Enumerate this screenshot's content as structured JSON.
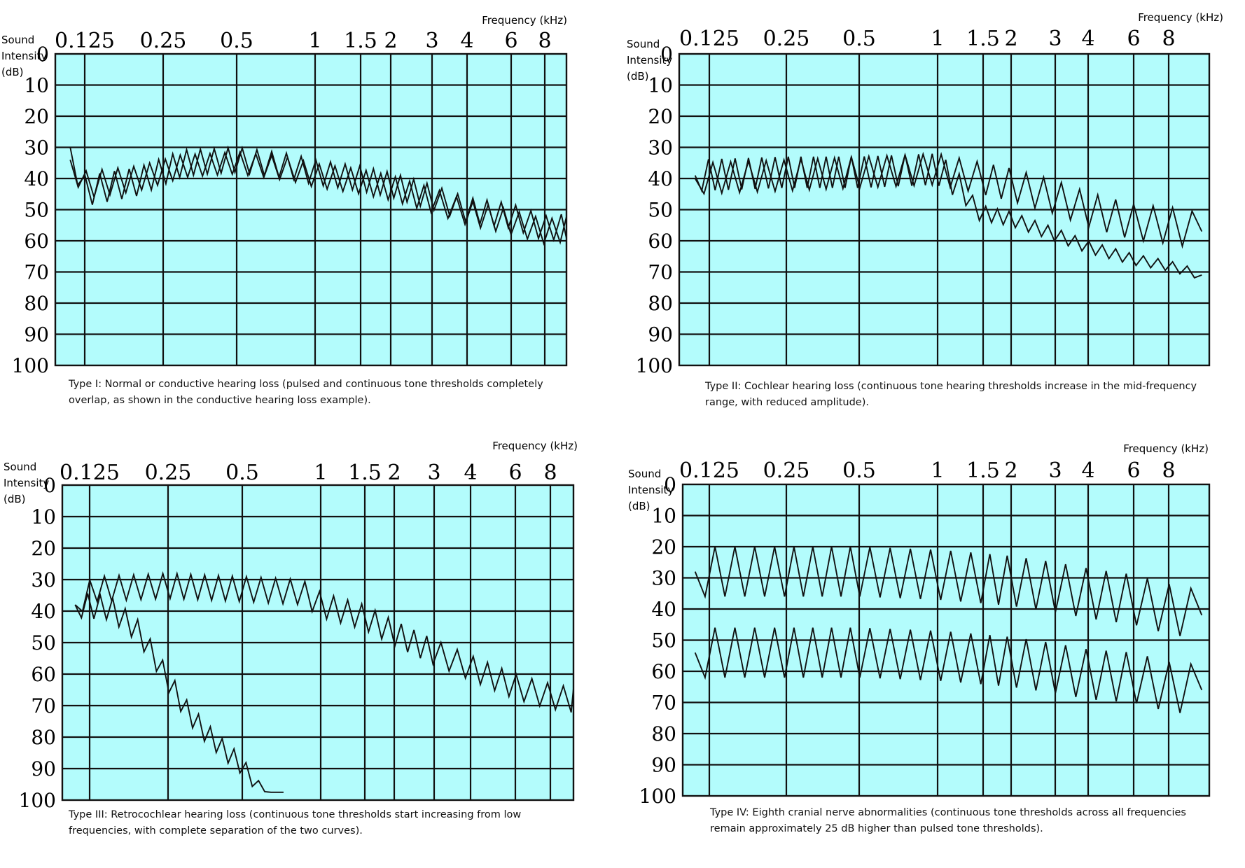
{
  "chart_data": [
    {
      "type": "line",
      "title": "",
      "xlabel": "Frequency (kHz)",
      "ylabel": [
        "Sound",
        "Intensity",
        "(dB)"
      ],
      "x_ticks": [
        "0.125",
        "0.25",
        "0.5",
        "1",
        "1.5",
        "2",
        "3",
        "4",
        "6",
        "8"
      ],
      "y_ticks": [
        "0",
        "10",
        "20",
        "30",
        "40",
        "50",
        "60",
        "70",
        "80",
        "90",
        "100"
      ],
      "ylim": [
        0,
        100
      ],
      "x_scale": "log",
      "grid": true,
      "plot_background": "#b3fcfc",
      "caption": "Type I: Normal or conductive hearing loss (pulsed and continuous tone thresholds completely overlap, as shown in the conductive hearing loss example).",
      "series": [
        {
          "role": "pulsed",
          "points": [
            [
              0.11,
              30
            ],
            [
              0.125,
              44
            ],
            [
              0.2,
              41
            ],
            [
              0.3,
              35
            ],
            [
              0.5,
              34
            ],
            [
              0.8,
              36
            ],
            [
              1.0,
              38
            ],
            [
              1.5,
              40
            ],
            [
              2.0,
              42
            ],
            [
              3.0,
              46
            ],
            [
              4.0,
              50
            ],
            [
              6.0,
              52
            ],
            [
              8.0,
              56
            ],
            [
              10.5,
              55
            ]
          ],
          "zigzag": [
            [
              0.11,
              10
            ],
            [
              0.4,
              8
            ],
            [
              1.5,
              8
            ],
            [
              10.5,
              8
            ]
          ],
          "step": 0.065
        },
        {
          "role": "continuous",
          "points": [
            [
              0.11,
              34
            ],
            [
              0.125,
              42
            ],
            [
              0.2,
              40
            ],
            [
              0.3,
              36
            ],
            [
              0.5,
              35
            ],
            [
              0.8,
              37
            ],
            [
              1.0,
              39
            ],
            [
              1.5,
              41
            ],
            [
              2.0,
              43
            ],
            [
              3.0,
              47
            ],
            [
              4.0,
              51
            ],
            [
              6.0,
              54
            ],
            [
              8.0,
              57
            ],
            [
              10.5,
              56
            ]
          ],
          "zigzag": [
            [
              0.11,
              9
            ],
            [
              0.4,
              7
            ],
            [
              1.5,
              8
            ],
            [
              10.5,
              8
            ]
          ],
          "step": 0.07
        }
      ]
    },
    {
      "type": "line",
      "title": "",
      "xlabel": "Frequency (kHz)",
      "ylabel": [
        "Sound",
        "Intensity",
        "(dB)"
      ],
      "x_ticks": [
        "0.125",
        "0.25",
        "0.5",
        "1",
        "1.5",
        "2",
        "3",
        "4",
        "6",
        "8"
      ],
      "y_ticks": [
        "0",
        "10",
        "20",
        "30",
        "40",
        "50",
        "60",
        "70",
        "80",
        "90",
        "100"
      ],
      "ylim": [
        0,
        100
      ],
      "x_scale": "log",
      "grid": true,
      "plot_background": "#b3fcfc",
      "caption": "Type II: Cochlear hearing loss (continuous tone hearing thresholds increase in the mid-frequency range, with reduced amplitude).",
      "series": [
        {
          "role": "pulsed",
          "points": [
            [
              0.11,
              40
            ],
            [
              0.25,
              39
            ],
            [
              0.5,
              38
            ],
            [
              1.0,
              37
            ],
            [
              1.5,
              40
            ],
            [
              2.0,
              42
            ],
            [
              3.0,
              46
            ],
            [
              4.0,
              50
            ],
            [
              6.0,
              54
            ],
            [
              8.0,
              55
            ],
            [
              10.5,
              57
            ]
          ],
          "zigzag": [
            [
              0.11,
              10
            ],
            [
              1.2,
              10
            ],
            [
              10.5,
              12
            ]
          ],
          "step": 0.08
        },
        {
          "role": "continuous",
          "points": [
            [
              0.11,
              39
            ],
            [
              0.25,
              38
            ],
            [
              0.5,
              38
            ],
            [
              1.0,
              37
            ],
            [
              1.2,
              42
            ],
            [
              1.45,
              51
            ],
            [
              2.0,
              53
            ],
            [
              3.0,
              58
            ],
            [
              4.0,
              62
            ],
            [
              6.0,
              66
            ],
            [
              8.0,
              68
            ],
            [
              10.5,
              71
            ]
          ],
          "zigzag": [
            [
              0.11,
              10
            ],
            [
              1.1,
              10
            ],
            [
              1.4,
              5
            ],
            [
              10.5,
              3
            ]
          ],
          "step": 0.06
        }
      ]
    },
    {
      "type": "line",
      "title": "",
      "xlabel": "Frequency (kHz)",
      "ylabel": [
        "Sound",
        "Intensity",
        "(dB)"
      ],
      "x_ticks": [
        "0.125",
        "0.25",
        "0.5",
        "1",
        "1.5",
        "2",
        "3",
        "4",
        "6",
        "8"
      ],
      "y_ticks": [
        "0",
        "10",
        "20",
        "30",
        "40",
        "50",
        "60",
        "70",
        "80",
        "90",
        "100"
      ],
      "ylim": [
        0,
        100
      ],
      "x_scale": "log",
      "grid": true,
      "plot_background": "#b3fcfc",
      "caption": "Type III: Retrocochlear hearing loss (continuous tone thresholds start increasing from low frequencies, with complete separation of the two curves).",
      "series": [
        {
          "role": "pulsed",
          "points": [
            [
              0.11,
              38
            ],
            [
              0.13,
              33
            ],
            [
              0.25,
              32
            ],
            [
              0.5,
              33
            ],
            [
              0.85,
              34
            ],
            [
              1.0,
              38
            ],
            [
              1.5,
              42
            ],
            [
              2.0,
              47
            ],
            [
              3.0,
              53
            ],
            [
              4.0,
              58
            ],
            [
              6.0,
              64
            ],
            [
              8.0,
              67
            ],
            [
              10.8,
              69
            ]
          ],
          "zigzag": [
            [
              0.11,
              8
            ],
            [
              0.9,
              8
            ],
            [
              1.0,
              8
            ],
            [
              10.8,
              8
            ]
          ],
          "step": 0.065
        },
        {
          "role": "continuous",
          "points": [
            [
              0.11,
              38
            ],
            [
              0.15,
              39
            ],
            [
              0.19,
              46
            ],
            [
              0.22,
              54
            ],
            [
              0.25,
              62
            ],
            [
              0.3,
              72
            ],
            [
              0.35,
              78
            ],
            [
              0.42,
              84
            ],
            [
              0.5,
              89
            ],
            [
              0.55,
              94
            ],
            [
              0.63,
              97.5
            ],
            [
              0.72,
              97.5
            ]
          ],
          "zigzag": [
            [
              0.11,
              8
            ],
            [
              0.5,
              6
            ],
            [
              0.6,
              2
            ],
            [
              0.63,
              0
            ],
            [
              0.72,
              0
            ]
          ],
          "step": 0.055
        }
      ]
    },
    {
      "type": "line",
      "title": "",
      "xlabel": "Frequency (kHz)",
      "ylabel": [
        "Sound",
        "Intensity",
        "(dB)"
      ],
      "x_ticks": [
        "0.125",
        "0.25",
        "0.5",
        "1",
        "1.5",
        "2",
        "3",
        "4",
        "6",
        "8"
      ],
      "y_ticks": [
        "0",
        "10",
        "20",
        "30",
        "40",
        "50",
        "60",
        "70",
        "80",
        "90",
        "100"
      ],
      "ylim": [
        0,
        100
      ],
      "x_scale": "log",
      "grid": true,
      "plot_background": "#b3fcfc",
      "caption": "Type IV: Eighth cranial nerve abnormalities (continuous tone thresholds across all frequencies remain approximately 25 dB higher than pulsed tone thresholds).",
      "series": [
        {
          "role": "pulsed",
          "points": [
            [
              0.11,
              28
            ],
            [
              0.5,
              28
            ],
            [
              1.0,
              29
            ],
            [
              2.0,
              31
            ],
            [
              3.0,
              33
            ],
            [
              4.0,
              35
            ],
            [
              6.0,
              37
            ],
            [
              8.0,
              40
            ],
            [
              10.5,
              42
            ]
          ],
          "zigzag": [
            [
              0.11,
              16
            ],
            [
              10.5,
              16
            ]
          ],
          "step": 0.09
        },
        {
          "role": "continuous",
          "points": [
            [
              0.11,
              54
            ],
            [
              0.5,
              54
            ],
            [
              1.0,
              55
            ],
            [
              2.0,
              57
            ],
            [
              3.0,
              59
            ],
            [
              4.0,
              61
            ],
            [
              6.0,
              62
            ],
            [
              8.0,
              65
            ],
            [
              10.5,
              66
            ]
          ],
          "zigzag": [
            [
              0.11,
              16
            ],
            [
              10.5,
              16
            ]
          ],
          "step": 0.09
        }
      ]
    }
  ]
}
